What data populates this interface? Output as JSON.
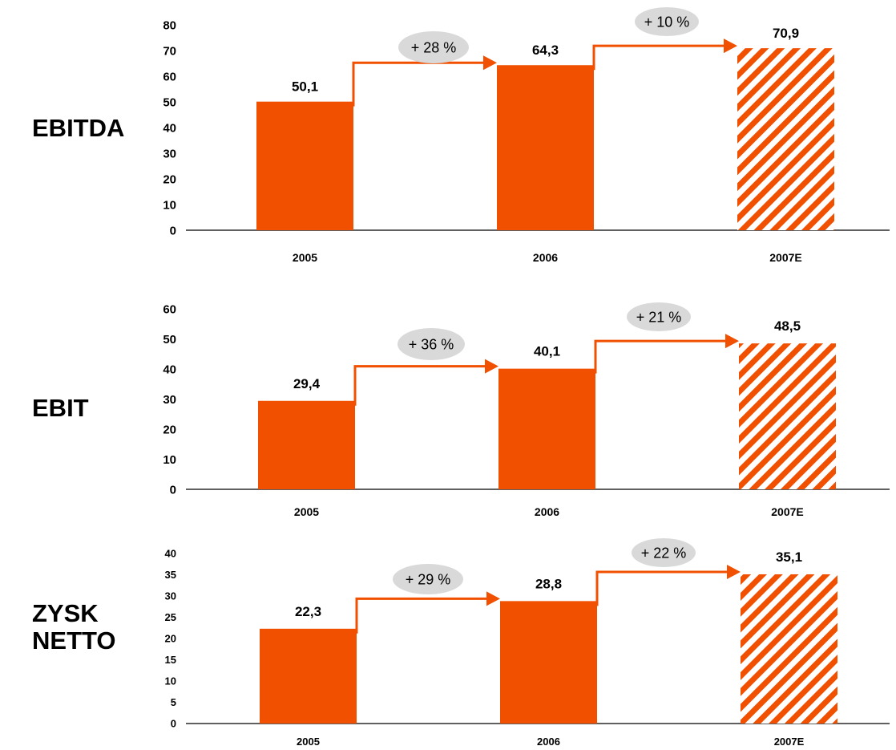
{
  "colors": {
    "bar": "#F05000",
    "hatch_bg": "#ffffff",
    "bubble": "#D9D9D9",
    "axis": "#000000"
  },
  "chart_data": [
    {
      "type": "bar",
      "row_label": [
        "EBITDA"
      ],
      "categories": [
        "2005",
        "2006",
        "2007E"
      ],
      "values": [
        50.1,
        64.3,
        70.9
      ],
      "value_labels": [
        "50,1",
        "64,3",
        "70,9"
      ],
      "forecast_category": "2007E",
      "growth_labels": [
        "+ 28 %",
        "+ 10 %"
      ],
      "ylim": [
        0,
        80
      ],
      "yticks": [
        0,
        10,
        20,
        30,
        40,
        50,
        60,
        70,
        80
      ]
    },
    {
      "type": "bar",
      "row_label": [
        "EBIT"
      ],
      "categories": [
        "2005",
        "2006",
        "2007E"
      ],
      "values": [
        29.4,
        40.1,
        48.5
      ],
      "value_labels": [
        "29,4",
        "40,1",
        "48,5"
      ],
      "forecast_category": "2007E",
      "growth_labels": [
        "+ 36 %",
        "+ 21 %"
      ],
      "ylim": [
        0,
        60
      ],
      "yticks": [
        0,
        10,
        20,
        30,
        40,
        50,
        60
      ]
    },
    {
      "type": "bar",
      "row_label": [
        "ZYSK",
        "NETTO"
      ],
      "categories": [
        "2005",
        "2006",
        "2007E"
      ],
      "values": [
        22.3,
        28.8,
        35.1
      ],
      "value_labels": [
        "22,3",
        "28,8",
        "35,1"
      ],
      "forecast_category": "2007E",
      "growth_labels": [
        "+ 29 %",
        "+ 22 %"
      ],
      "ylim": [
        0,
        40
      ],
      "yticks": [
        0,
        5,
        10,
        15,
        20,
        25,
        30,
        35,
        40
      ]
    }
  ]
}
